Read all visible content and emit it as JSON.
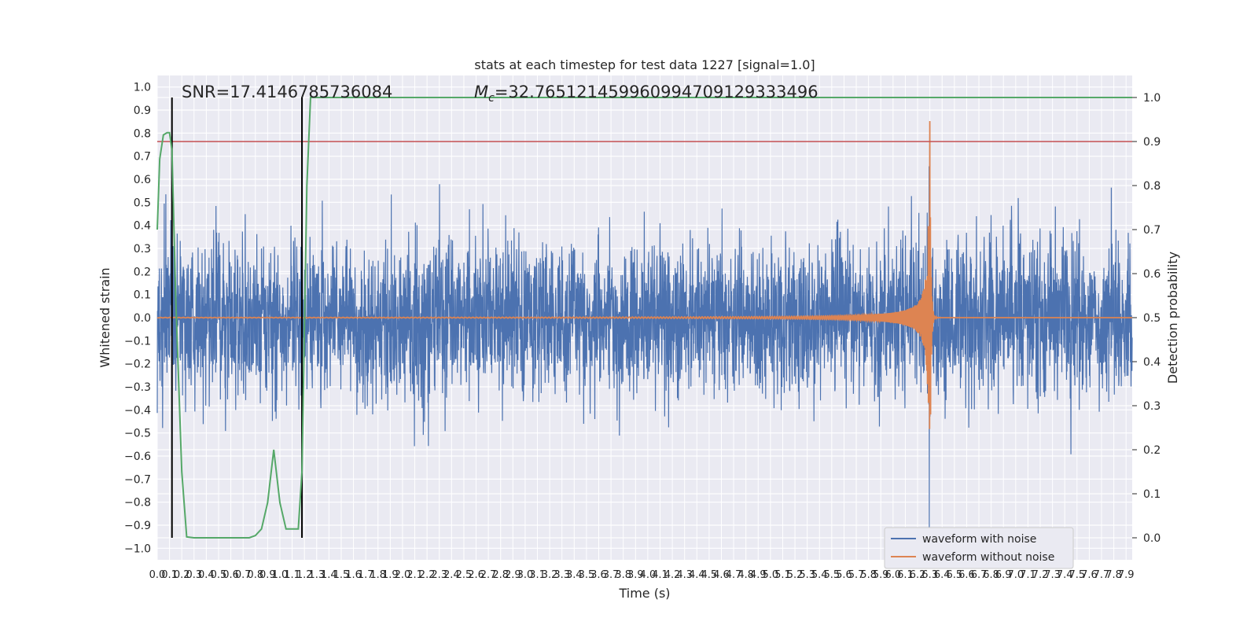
{
  "chart_data": {
    "type": "line",
    "title": "stats at each timestep for test data 1227 [signal=1.0]",
    "xlabel": "Time (s)",
    "ylabel": "Whitened strain",
    "y2label": "Detection probability",
    "xlim": [
      0.0,
      7.95
    ],
    "ylim": [
      -1.05,
      1.05
    ],
    "y2lim": [
      -0.05,
      1.05
    ],
    "grid": true,
    "legend_position": "lower-right",
    "x_ticks": [
      "0.0",
      "0.1",
      "0.2",
      "0.3",
      "0.4",
      "0.5",
      "0.6",
      "0.7",
      "0.8",
      "0.9",
      "1.0",
      "1.1",
      "1.2",
      "1.3",
      "1.4",
      "1.5",
      "1.6",
      "1.7",
      "1.8",
      "1.9",
      "2.0",
      "2.1",
      "2.2",
      "2.3",
      "2.4",
      "2.5",
      "2.6",
      "2.7",
      "2.8",
      "2.9",
      "3.0",
      "3.1",
      "3.2",
      "3.3",
      "3.4",
      "3.5",
      "3.6",
      "3.7",
      "3.8",
      "3.9",
      "4.0",
      "4.1",
      "4.2",
      "4.3",
      "4.4",
      "4.5",
      "4.6",
      "4.7",
      "4.8",
      "4.9",
      "5.0",
      "5.1",
      "5.2",
      "5.3",
      "5.4",
      "5.5",
      "5.6",
      "5.7",
      "5.8",
      "5.9",
      "6.0",
      "6.1",
      "6.2",
      "6.3",
      "6.4",
      "6.5",
      "6.6",
      "6.7",
      "6.8",
      "6.9",
      "7.0",
      "7.1",
      "7.2",
      "7.3",
      "7.4",
      "7.5",
      "7.6",
      "7.7",
      "7.8",
      "7.9"
    ],
    "y_ticks": [
      "1.0",
      "0.9",
      "0.8",
      "0.7",
      "0.6",
      "0.5",
      "0.4",
      "0.3",
      "0.2",
      "0.1",
      "0.0",
      "−0.1",
      "−0.2",
      "−0.3",
      "−0.4",
      "−0.5",
      "−0.6",
      "−0.7",
      "−0.8",
      "−0.9",
      "−1.0"
    ],
    "y2_ticks": [
      "1.0",
      "0.9",
      "0.8",
      "0.7",
      "0.6",
      "0.5",
      "0.4",
      "0.3",
      "0.2",
      "0.1",
      "0.0"
    ],
    "annotations": {
      "snr": "SNR=17.4146785736084",
      "mc": "M",
      "mc_sub": "c",
      "mc_value": "=32.765121459960994709129333496"
    },
    "threshold": {
      "y2": 0.9,
      "color": "#c44e52"
    },
    "vertical_markers": [
      0.12,
      1.18
    ],
    "series": [
      {
        "name": "waveform with noise",
        "color": "#4c72b0",
        "axis": "left",
        "kind": "noise",
        "amplitude_range": [
          -0.8,
          0.77
        ]
      },
      {
        "name": "waveform without noise",
        "color": "#dd8452",
        "axis": "left",
        "kind": "chirp",
        "merger_time": 6.3,
        "peak_amplitude": 0.86
      },
      {
        "axis": "right",
        "color": "#55a868",
        "kind": "probability",
        "x": [
          0.0,
          0.02,
          0.05,
          0.08,
          0.1,
          0.12,
          0.15,
          0.2,
          0.24,
          0.3,
          0.4,
          0.5,
          0.6,
          0.7,
          0.75,
          0.8,
          0.85,
          0.9,
          0.95,
          1.0,
          1.05,
          1.1,
          1.15,
          1.18,
          1.22,
          1.25,
          7.95
        ],
        "y": [
          0.7,
          0.86,
          0.915,
          0.92,
          0.92,
          0.88,
          0.55,
          0.15,
          0.002,
          0.0,
          0.0,
          0.0,
          0.0,
          0.0,
          0.0,
          0.005,
          0.02,
          0.08,
          0.2,
          0.08,
          0.02,
          0.02,
          0.02,
          0.15,
          0.8,
          1.0,
          1.0
        ]
      }
    ]
  }
}
